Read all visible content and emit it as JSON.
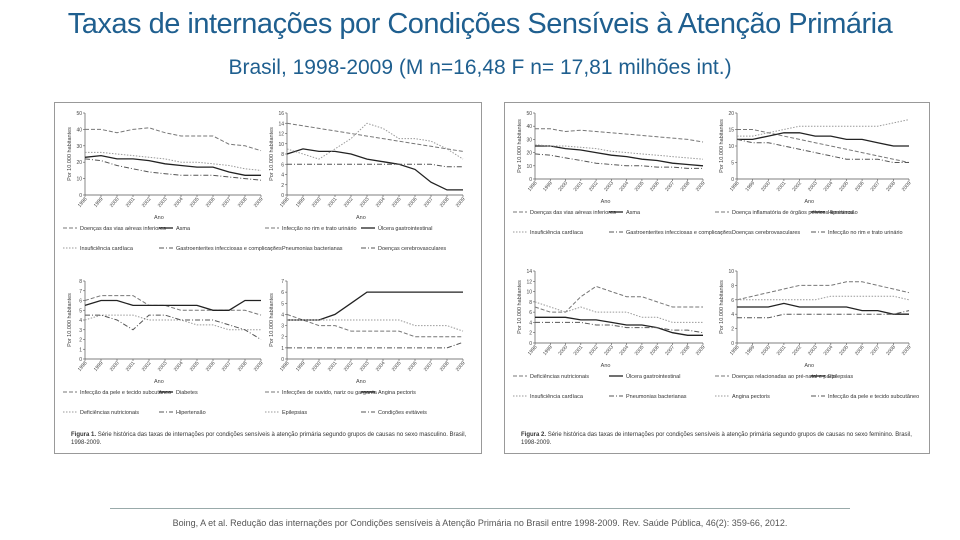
{
  "title": "Taxas de internações por Condições Sensíveis à Atenção Primária",
  "subtitle": "Brasil, 1998-2009 (M n=16,48 F n= 17,81 milhões int.)",
  "reference": "Boing, A et al. Redução das internações por Condições sensíveis à Atenção Primária no Brasil entre 1998-2009. Rev. Saúde Pública, 46(2): 359-66, 2012.",
  "colors": {
    "title": "#1f5f8f",
    "solid": "#222222",
    "dashed": "#777777",
    "dotted": "#9a9a9a",
    "dashdot": "#555555",
    "light": "#b8b8b8"
  },
  "figures": {
    "male": {
      "caption_bold": "Figura 1.",
      "caption_text": "Série histórica das taxas de internações por condições sensíveis à atenção primária segundo grupos de causas no sexo masculino. Brasil, 1998-2009."
    },
    "female": {
      "caption_bold": "Figura 2.",
      "caption_text": "Série histórica das taxas de internações por condições sensíveis à atenção primária segundo grupos de causas no sexo feminino. Brasil, 1998-2009."
    }
  },
  "chart_data": [
    {
      "id": "m1",
      "type": "line",
      "panel": "male",
      "ylabel": "Por 10.000 habitantes",
      "xlabel": "Ano",
      "ylim": [
        0,
        50
      ],
      "yticks": [
        0,
        10,
        20,
        30,
        40,
        50
      ],
      "x": [
        "1998",
        "1999",
        "2000",
        "2001",
        "2002",
        "2003",
        "2004",
        "2005",
        "2006",
        "2007",
        "2008",
        "2009"
      ],
      "series": [
        {
          "name": "Doenças das vias aéreas inferiores",
          "style": "dashed",
          "values": [
            40,
            40,
            38,
            40,
            41,
            38,
            36,
            36,
            36,
            31,
            30,
            27
          ]
        },
        {
          "name": "Asma",
          "style": "solid",
          "values": [
            23,
            24,
            22,
            22,
            21,
            19,
            18,
            17,
            17,
            14,
            12,
            12
          ]
        },
        {
          "name": "Insuficiência cardíaca",
          "style": "dotted",
          "values": [
            26,
            26,
            25,
            24,
            23,
            22,
            20,
            20,
            19,
            18,
            16,
            15
          ]
        },
        {
          "name": "Gastroenterites infecciosas e complicações",
          "style": "dashdot",
          "values": [
            22,
            21,
            18,
            16,
            14,
            13,
            12,
            12,
            12,
            11,
            10,
            9
          ]
        }
      ],
      "legend": [
        "Doenças das vias aéreas inferiores",
        "Asma",
        "Insuficiência cardíaca",
        "Gastroenterites infecciosas e complicações"
      ]
    },
    {
      "id": "m2",
      "type": "line",
      "panel": "male",
      "ylabel": "Por 10.000 habitantes",
      "xlabel": "Ano",
      "ylim": [
        0,
        16
      ],
      "yticks": [
        0,
        2,
        4,
        6,
        8,
        10,
        12,
        14,
        16
      ],
      "x": [
        "1998",
        "1999",
        "2000",
        "2001",
        "2002",
        "2003",
        "2004",
        "2005",
        "2006",
        "2007",
        "2008",
        "2009"
      ],
      "series": [
        {
          "name": "Infecção no rim e trato urinário",
          "style": "dashed",
          "values": [
            14,
            13.5,
            13,
            12.5,
            12,
            11.5,
            11,
            10.5,
            10,
            9.5,
            9,
            8.5
          ]
        },
        {
          "name": "Úlcera gastrointestinal",
          "style": "solid",
          "values": [
            8,
            9,
            8.5,
            8.5,
            8,
            7,
            6.5,
            6,
            5,
            2.5,
            1,
            1
          ]
        },
        {
          "name": "Pneumonias bacterianas",
          "style": "dotted",
          "values": [
            9,
            8,
            7,
            9,
            11,
            14,
            13,
            11,
            11,
            10.5,
            9,
            7
          ]
        },
        {
          "name": "Doenças cerebrovasculares",
          "style": "dashdot",
          "values": [
            6,
            6,
            6,
            6,
            6,
            6,
            6,
            6,
            6,
            6,
            5.5,
            5.5
          ]
        }
      ],
      "legend": [
        "Infecção no rim e trato urinário",
        "Úlcera gastrointestinal",
        "Pneumonias bacterianas",
        "Doenças cerebrovasculares"
      ]
    },
    {
      "id": "m3",
      "type": "line",
      "panel": "male",
      "ylabel": "Por 10.000 habitantes",
      "xlabel": "Ano",
      "ylim": [
        0,
        8
      ],
      "yticks": [
        0,
        1,
        2,
        3,
        4,
        5,
        6,
        7,
        8
      ],
      "x": [
        "1998",
        "1999",
        "2000",
        "2001",
        "2002",
        "2003",
        "2004",
        "2005",
        "2006",
        "2007",
        "2008",
        "2009"
      ],
      "series": [
        {
          "name": "Infecção da pele e tecido subcutâneo",
          "style": "dashed",
          "values": [
            6,
            6.5,
            6.5,
            6.5,
            5.5,
            5.5,
            5,
            5,
            5,
            5,
            5,
            4.5
          ]
        },
        {
          "name": "Diabetes",
          "style": "solid",
          "values": [
            5.5,
            6,
            6,
            5.5,
            5.5,
            5.5,
            5.5,
            5.5,
            5,
            5,
            6,
            6
          ]
        },
        {
          "name": "Deficiências nutricionais",
          "style": "dotted",
          "values": [
            4,
            4.5,
            4.5,
            4.5,
            4,
            4,
            4,
            3.5,
            3.5,
            3,
            3,
            3
          ]
        },
        {
          "name": "Hipertensão",
          "style": "dashdot",
          "values": [
            4.5,
            4.5,
            4,
            3,
            4.5,
            4.5,
            4,
            4,
            4,
            3.5,
            3,
            2
          ]
        }
      ],
      "legend": [
        "Infecção da pele e tecido subcutâneo",
        "Diabetes",
        "Deficiências nutricionais",
        "Hipertensão"
      ]
    },
    {
      "id": "m4",
      "type": "line",
      "panel": "male",
      "ylabel": "Por 10.000 habitantes",
      "xlabel": "Ano",
      "ylim": [
        0,
        7
      ],
      "yticks": [
        0,
        1,
        2,
        3,
        4,
        5,
        6,
        7
      ],
      "x": [
        "1998",
        "1999",
        "2000",
        "2001",
        "2002",
        "2003",
        "2004",
        "2005",
        "2006",
        "2007",
        "2008",
        "2009"
      ],
      "series": [
        {
          "name": "Infecções de ouvido, nariz ou garganta",
          "style": "dashed",
          "values": [
            4,
            3.5,
            3,
            3,
            2.5,
            2.5,
            2.5,
            2.5,
            2,
            2,
            2,
            2
          ]
        },
        {
          "name": "Angina pectoris",
          "style": "solid",
          "values": [
            3.5,
            3.5,
            3.5,
            4,
            5,
            6,
            6,
            6,
            6,
            6,
            6,
            6
          ]
        },
        {
          "name": "Epilepsias",
          "style": "dotted",
          "values": [
            3.5,
            3.5,
            3.5,
            3.5,
            3.5,
            3.5,
            3.5,
            3.5,
            3,
            3,
            3,
            2.5
          ]
        },
        {
          "name": "Condições evitáveis",
          "style": "dashdot",
          "values": [
            1,
            1,
            1,
            1,
            1,
            1,
            1,
            1,
            1,
            1,
            1,
            1.5
          ]
        }
      ],
      "legend": [
        "Infecções de ouvido, nariz ou garganta",
        "Angina pectoris",
        "Epilepsias",
        "Condições evitáveis"
      ]
    },
    {
      "id": "f1",
      "type": "line",
      "panel": "female",
      "ylabel": "Por 10.000 habitantes",
      "xlabel": "Ano",
      "ylim": [
        0,
        50
      ],
      "yticks": [
        0,
        10,
        20,
        30,
        40,
        50
      ],
      "x": [
        "1998",
        "1999",
        "2000",
        "2001",
        "2002",
        "2003",
        "2004",
        "2005",
        "2006",
        "2007",
        "2008",
        "2009"
      ],
      "series": [
        {
          "name": "Doenças das vias aéreas inferiores",
          "style": "dashed",
          "values": [
            38,
            38,
            36,
            37,
            36,
            35,
            34,
            33,
            32,
            31,
            30,
            28
          ]
        },
        {
          "name": "Asma",
          "style": "solid",
          "values": [
            25,
            25,
            23,
            22,
            20,
            18,
            17,
            15,
            14,
            12,
            11,
            10
          ]
        },
        {
          "name": "Insuficiência cardíaca",
          "style": "dotted",
          "values": [
            26,
            25,
            25,
            24,
            23,
            21,
            20,
            19,
            18,
            17,
            16,
            15
          ]
        },
        {
          "name": "Gastroenterites infecciosas e complicações",
          "style": "dashdot",
          "values": [
            19,
            18,
            16,
            14,
            12,
            11,
            10,
            10,
            9,
            9,
            8,
            8
          ]
        }
      ],
      "legend": [
        "Doenças das vias aéreas inferiores",
        "Asma",
        "Insuficiência cardíaca",
        "Gastroenterites infecciosas e complicações"
      ]
    },
    {
      "id": "f2",
      "type": "line",
      "panel": "female",
      "ylabel": "Por 10.000 habitantes",
      "xlabel": "Ano",
      "ylim": [
        0,
        20
      ],
      "yticks": [
        0,
        5,
        10,
        15,
        20
      ],
      "x": [
        "1998",
        "1999",
        "2000",
        "2001",
        "2002",
        "2003",
        "2004",
        "2005",
        "2006",
        "2007",
        "2008",
        "2009"
      ],
      "series": [
        {
          "name": "Doença inflamatória de órgãos pélvicos femininos",
          "style": "dashed",
          "values": [
            15,
            15,
            14,
            13,
            12,
            11,
            10,
            9,
            8,
            7,
            6,
            5
          ]
        },
        {
          "name": "Hipertensão",
          "style": "solid",
          "values": [
            12,
            12,
            13,
            14,
            14,
            13,
            13,
            12,
            12,
            11,
            10,
            10
          ]
        },
        {
          "name": "Doenças cerebrovasculares",
          "style": "dotted",
          "values": [
            13,
            13,
            14,
            15,
            16,
            16,
            16,
            16,
            16,
            16,
            17,
            18
          ]
        },
        {
          "name": "Infecção no rim e trato urinário",
          "style": "dashdot",
          "values": [
            12,
            11,
            11,
            10,
            9,
            8,
            7,
            6,
            6,
            6,
            5,
            5
          ]
        }
      ],
      "legend": [
        "Doença inflamatória de órgãos pélvicos femininos",
        "Hipertensão",
        "Doenças cerebrovasculares",
        "Infecção no rim e trato urinário"
      ]
    },
    {
      "id": "f3",
      "type": "line",
      "panel": "female",
      "ylabel": "Por 10.000 habitantes",
      "xlabel": "Ano",
      "ylim": [
        0,
        14
      ],
      "yticks": [
        0,
        2,
        4,
        6,
        8,
        10,
        12,
        14
      ],
      "x": [
        "1998",
        "1999",
        "2000",
        "2001",
        "2002",
        "2003",
        "2004",
        "2005",
        "2006",
        "2007",
        "2008",
        "2009"
      ],
      "series": [
        {
          "name": "Deficiências nutricionais",
          "style": "dashed",
          "values": [
            7,
            6,
            6,
            9,
            11,
            10,
            9,
            9,
            8,
            7,
            7,
            7
          ]
        },
        {
          "name": "Úlcera gastrointestinal",
          "style": "solid",
          "values": [
            5,
            5,
            5,
            4.5,
            4.5,
            4,
            3.5,
            3.5,
            3,
            2,
            1.5,
            1.5
          ]
        },
        {
          "name": "Insuficiência cardíaca",
          "style": "dotted",
          "values": [
            8,
            7,
            6,
            7,
            6,
            6,
            6,
            5,
            5,
            4,
            4,
            4
          ]
        },
        {
          "name": "Pneumonias bacterianas",
          "style": "dashdot",
          "values": [
            4,
            4,
            4,
            4,
            3.5,
            3.5,
            3,
            3,
            3,
            2.5,
            2.5,
            2
          ]
        }
      ],
      "legend": [
        "Deficiências nutricionais",
        "Úlcera gastrointestinal",
        "Insuficiência cardíaca",
        "Pneumonias bacterianas"
      ]
    },
    {
      "id": "f4",
      "type": "line",
      "panel": "female",
      "ylabel": "Por 10.000 habitantes",
      "xlabel": "Ano",
      "ylim": [
        0,
        10
      ],
      "yticks": [
        0,
        2,
        4,
        6,
        8,
        10
      ],
      "x": [
        "1998",
        "1999",
        "2000",
        "2001",
        "2002",
        "2003",
        "2004",
        "2005",
        "2006",
        "2007",
        "2008",
        "2009"
      ],
      "series": [
        {
          "name": "Doenças relacionadas ao pré-natal e parto",
          "style": "dashed",
          "values": [
            6,
            6.5,
            7,
            7.5,
            8,
            8,
            8,
            8.5,
            8.5,
            8,
            7.5,
            7
          ]
        },
        {
          "name": "Epilepsias",
          "style": "solid",
          "values": [
            5,
            5,
            5,
            5.5,
            5,
            5,
            5,
            5,
            4.5,
            4.5,
            4,
            4
          ]
        },
        {
          "name": "Angina pectoris",
          "style": "dotted",
          "values": [
            6,
            6,
            6,
            6,
            6,
            6,
            6.5,
            6.5,
            6.5,
            6.5,
            6.5,
            6
          ]
        },
        {
          "name": "Infecção da pele e tecido subcutâneo",
          "style": "dashdot",
          "values": [
            3.5,
            3.5,
            3.5,
            4,
            4,
            4,
            4,
            4,
            4,
            4,
            4,
            4.5
          ]
        }
      ],
      "legend": [
        "Doenças relacionadas ao pré-natal e parto",
        "Epilepsias",
        "Angina pectoris",
        "Infecção da pele e tecido subcutâneo"
      ]
    }
  ]
}
